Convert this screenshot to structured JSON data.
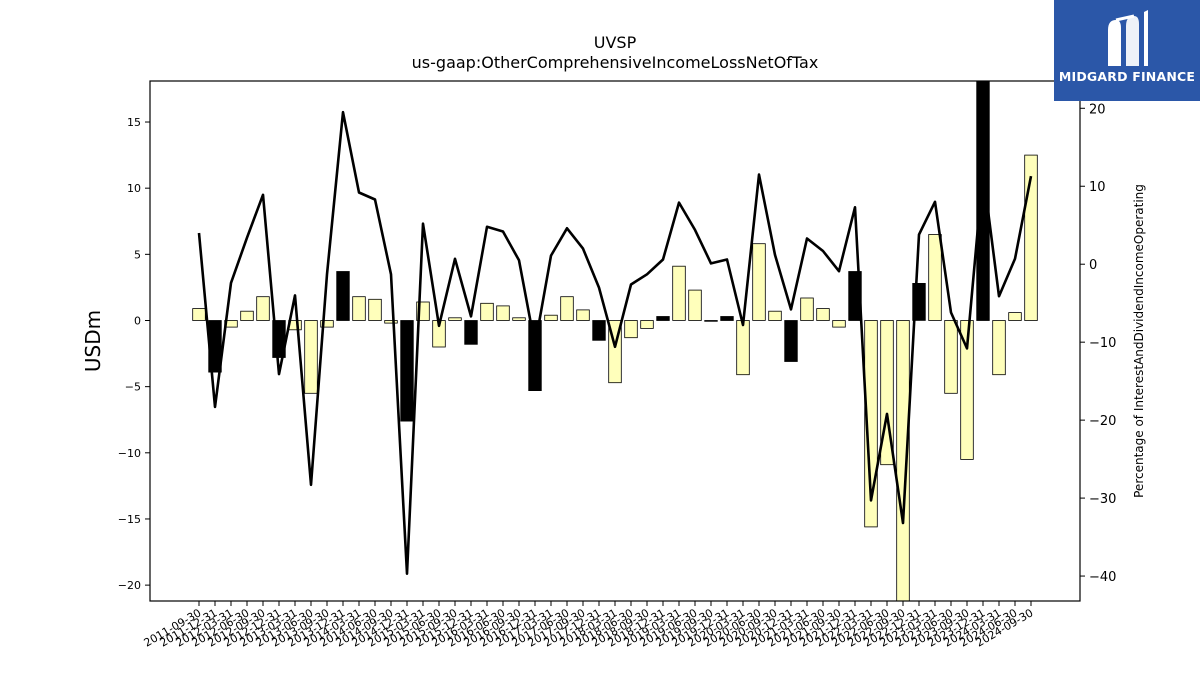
{
  "brand": {
    "name": "MIDGARD FINANCE",
    "logo_icon": "midgard-m-icon",
    "color": "#2b57a8"
  },
  "chart_data": {
    "type": "bar",
    "title": "UVSP",
    "subtitle": "us-gaap:OtherComprehensiveIncomeLossNetOfTax",
    "ylabel": "USDm",
    "y2label": "Percentage of InterestAndDividendIncomeOperating",
    "ylim": [
      -21.2,
      18.1
    ],
    "y2lim": [
      -43.2,
      23.5
    ],
    "yticks": [
      -20,
      -15,
      -10,
      -5,
      0,
      5,
      10,
      15
    ],
    "y2ticks": [
      -40,
      -30,
      -20,
      -10,
      0,
      10,
      20
    ],
    "grid": false,
    "legend": "none",
    "colors": {
      "positive_bar": "#ffffbb",
      "negative_bar": "#ffffbb",
      "highlight_bar": "#000000",
      "line": "#000000"
    },
    "categories": [
      "2011-09-30",
      "2011-12-31",
      "2012-03-31",
      "2012-06-30",
      "2012-09-30",
      "2012-12-31",
      "2013-03-31",
      "2013-06-30",
      "2013-09-30",
      "2013-12-31",
      "2014-03-31",
      "2014-06-30",
      "2014-09-30",
      "2014-12-31",
      "2015-03-31",
      "2015-06-30",
      "2015-09-30",
      "2015-12-31",
      "2016-03-31",
      "2016-06-30",
      "2016-09-30",
      "2016-12-31",
      "2017-03-31",
      "2017-06-30",
      "2017-09-30",
      "2017-12-31",
      "2018-03-31",
      "2018-06-30",
      "2018-09-30",
      "2018-12-31",
      "2019-03-31",
      "2019-06-30",
      "2019-09-30",
      "2019-12-31",
      "2020-03-31",
      "2020-06-30",
      "2020-09-30",
      "2020-12-31",
      "2021-03-31",
      "2021-06-30",
      "2021-09-30",
      "2021-12-31",
      "2022-03-31",
      "2022-06-30",
      "2022-09-30",
      "2022-12-31",
      "2023-03-31",
      "2023-06-30",
      "2023-09-30",
      "2023-12-31",
      "2024-03-31",
      "2024-06-30",
      "2024-09-30"
    ],
    "tick_labels": [
      "2011-09-30",
      "2011-12-31",
      "2012-03-31",
      "2012-06-30",
      "2012-09-30",
      "2012-12-31",
      "2013-03-31",
      "2013-06-30",
      "2013-09-30",
      "2013-12-31",
      "2014-03-31",
      "2014-06-30",
      "2014-09-30",
      "2014-12-31",
      "2015-03-31",
      "2015-06-30",
      "2015-09-30",
      "2015-12-31",
      "2016-03-31",
      "2016-06-30",
      "2016-09-30",
      "2016-12-31",
      "2017-03-31",
      "2017-06-30",
      "2017-09-30",
      "2017-12-31",
      "2018-03-31",
      "2018-06-30",
      "2018-09-30",
      "2018-12-31",
      "2019-03-31",
      "2019-06-30",
      "2019-09-30",
      "2019-12-31",
      "2020-03-31",
      "2020-06-30",
      "2020-09-30",
      "2020-12-31",
      "2021-03-31",
      "2021-06-30",
      "2021-09-30",
      "2021-12-31",
      "2022-03-31",
      "2022-06-30",
      "2022-09-30",
      "2022-12-31",
      "2023-03-31",
      "2023-06-30",
      "2023-09-30",
      "2023-12-31",
      "2024-03-31",
      "2024-06-30",
      "2024-09-30"
    ],
    "series": [
      {
        "type": "bar",
        "axis": "left",
        "values": [
          0.9,
          -3.9,
          -0.5,
          0.7,
          1.8,
          -2.8,
          -0.7,
          -5.5,
          -0.5,
          3.7,
          1.8,
          1.6,
          -0.2,
          -7.6,
          1.4,
          -2.0,
          0.2,
          -1.8,
          1.3,
          1.1,
          0.2,
          -5.3,
          0.4,
          1.8,
          0.8,
          -1.5,
          -4.7,
          -1.3,
          -0.6,
          0.3,
          4.1,
          2.3,
          0.0,
          0.3,
          -4.1,
          5.8,
          0.7,
          -3.1,
          1.7,
          0.9,
          -0.5,
          3.7,
          -15.6,
          -10.9,
          -21.2,
          2.8,
          6.5,
          -5.5,
          -10.5,
          18.1,
          -4.1,
          0.6,
          12.5
        ],
        "highlight": [
          false,
          true,
          false,
          false,
          false,
          true,
          false,
          false,
          false,
          true,
          false,
          false,
          false,
          true,
          false,
          false,
          false,
          true,
          false,
          false,
          false,
          true,
          false,
          false,
          false,
          true,
          false,
          false,
          false,
          true,
          false,
          false,
          false,
          true,
          false,
          false,
          false,
          true,
          false,
          false,
          false,
          true,
          false,
          false,
          false,
          true,
          false,
          false,
          false,
          true,
          false,
          false,
          false
        ]
      },
      {
        "type": "line",
        "axis": "right",
        "values": [
          4.0,
          -18.3,
          -2.4,
          3.4,
          8.9,
          -14.1,
          -4.0,
          -28.3,
          -1.3,
          19.5,
          9.2,
          8.3,
          -1.3,
          -39.7,
          5.2,
          -7.9,
          0.7,
          -6.7,
          4.8,
          4.2,
          0.5,
          -10.4,
          1.1,
          4.6,
          2.0,
          -3.0,
          -10.6,
          -2.6,
          -1.3,
          0.6,
          7.9,
          4.4,
          0.1,
          0.6,
          -7.8,
          11.5,
          1.2,
          -5.8,
          3.3,
          1.7,
          -0.9,
          7.3,
          -30.3,
          -19.2,
          -33.2,
          3.8,
          8.0,
          -6.2,
          -10.8,
          11.9,
          -4.1,
          0.7,
          11.3
        ]
      }
    ]
  }
}
